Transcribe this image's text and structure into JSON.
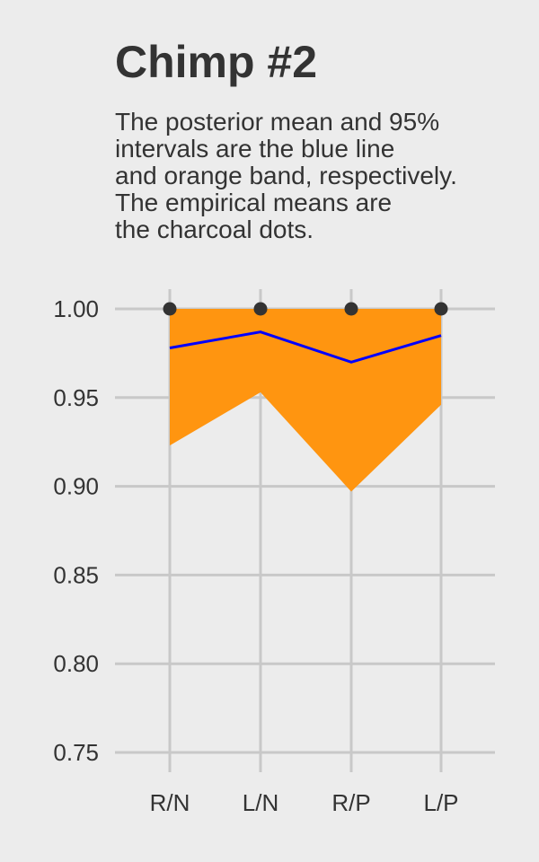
{
  "chart_data": {
    "type": "line",
    "title": "Chimp #2",
    "subtitle": "The posterior mean and 95%\nintervals are the blue line\nand orange band, respectively.\nThe empirical means are\nthe charcoal dots.",
    "xlabel": "",
    "ylabel": "",
    "categories": [
      "R/N",
      "L/N",
      "R/P",
      "L/P"
    ],
    "ylim": [
      0.75,
      1.0
    ],
    "yticks": [
      "0.75",
      "0.80",
      "0.85",
      "0.90",
      "0.95",
      "1.00"
    ],
    "grid": true,
    "series": [
      {
        "name": "posterior mean",
        "kind": "line",
        "color": "#0000ff",
        "values": [
          0.978,
          0.987,
          0.97,
          0.985
        ]
      },
      {
        "name": "95% interval lower",
        "kind": "band-lower",
        "color": "#ff9510",
        "values": [
          0.923,
          0.953,
          0.897,
          0.946
        ]
      },
      {
        "name": "95% interval upper",
        "kind": "band-upper",
        "color": "#ff9510",
        "values": [
          1.0,
          1.0,
          1.0,
          1.0
        ]
      },
      {
        "name": "empirical mean",
        "kind": "points",
        "color": "#333333",
        "values": [
          1.0,
          1.0,
          1.0,
          1.0
        ]
      }
    ]
  }
}
